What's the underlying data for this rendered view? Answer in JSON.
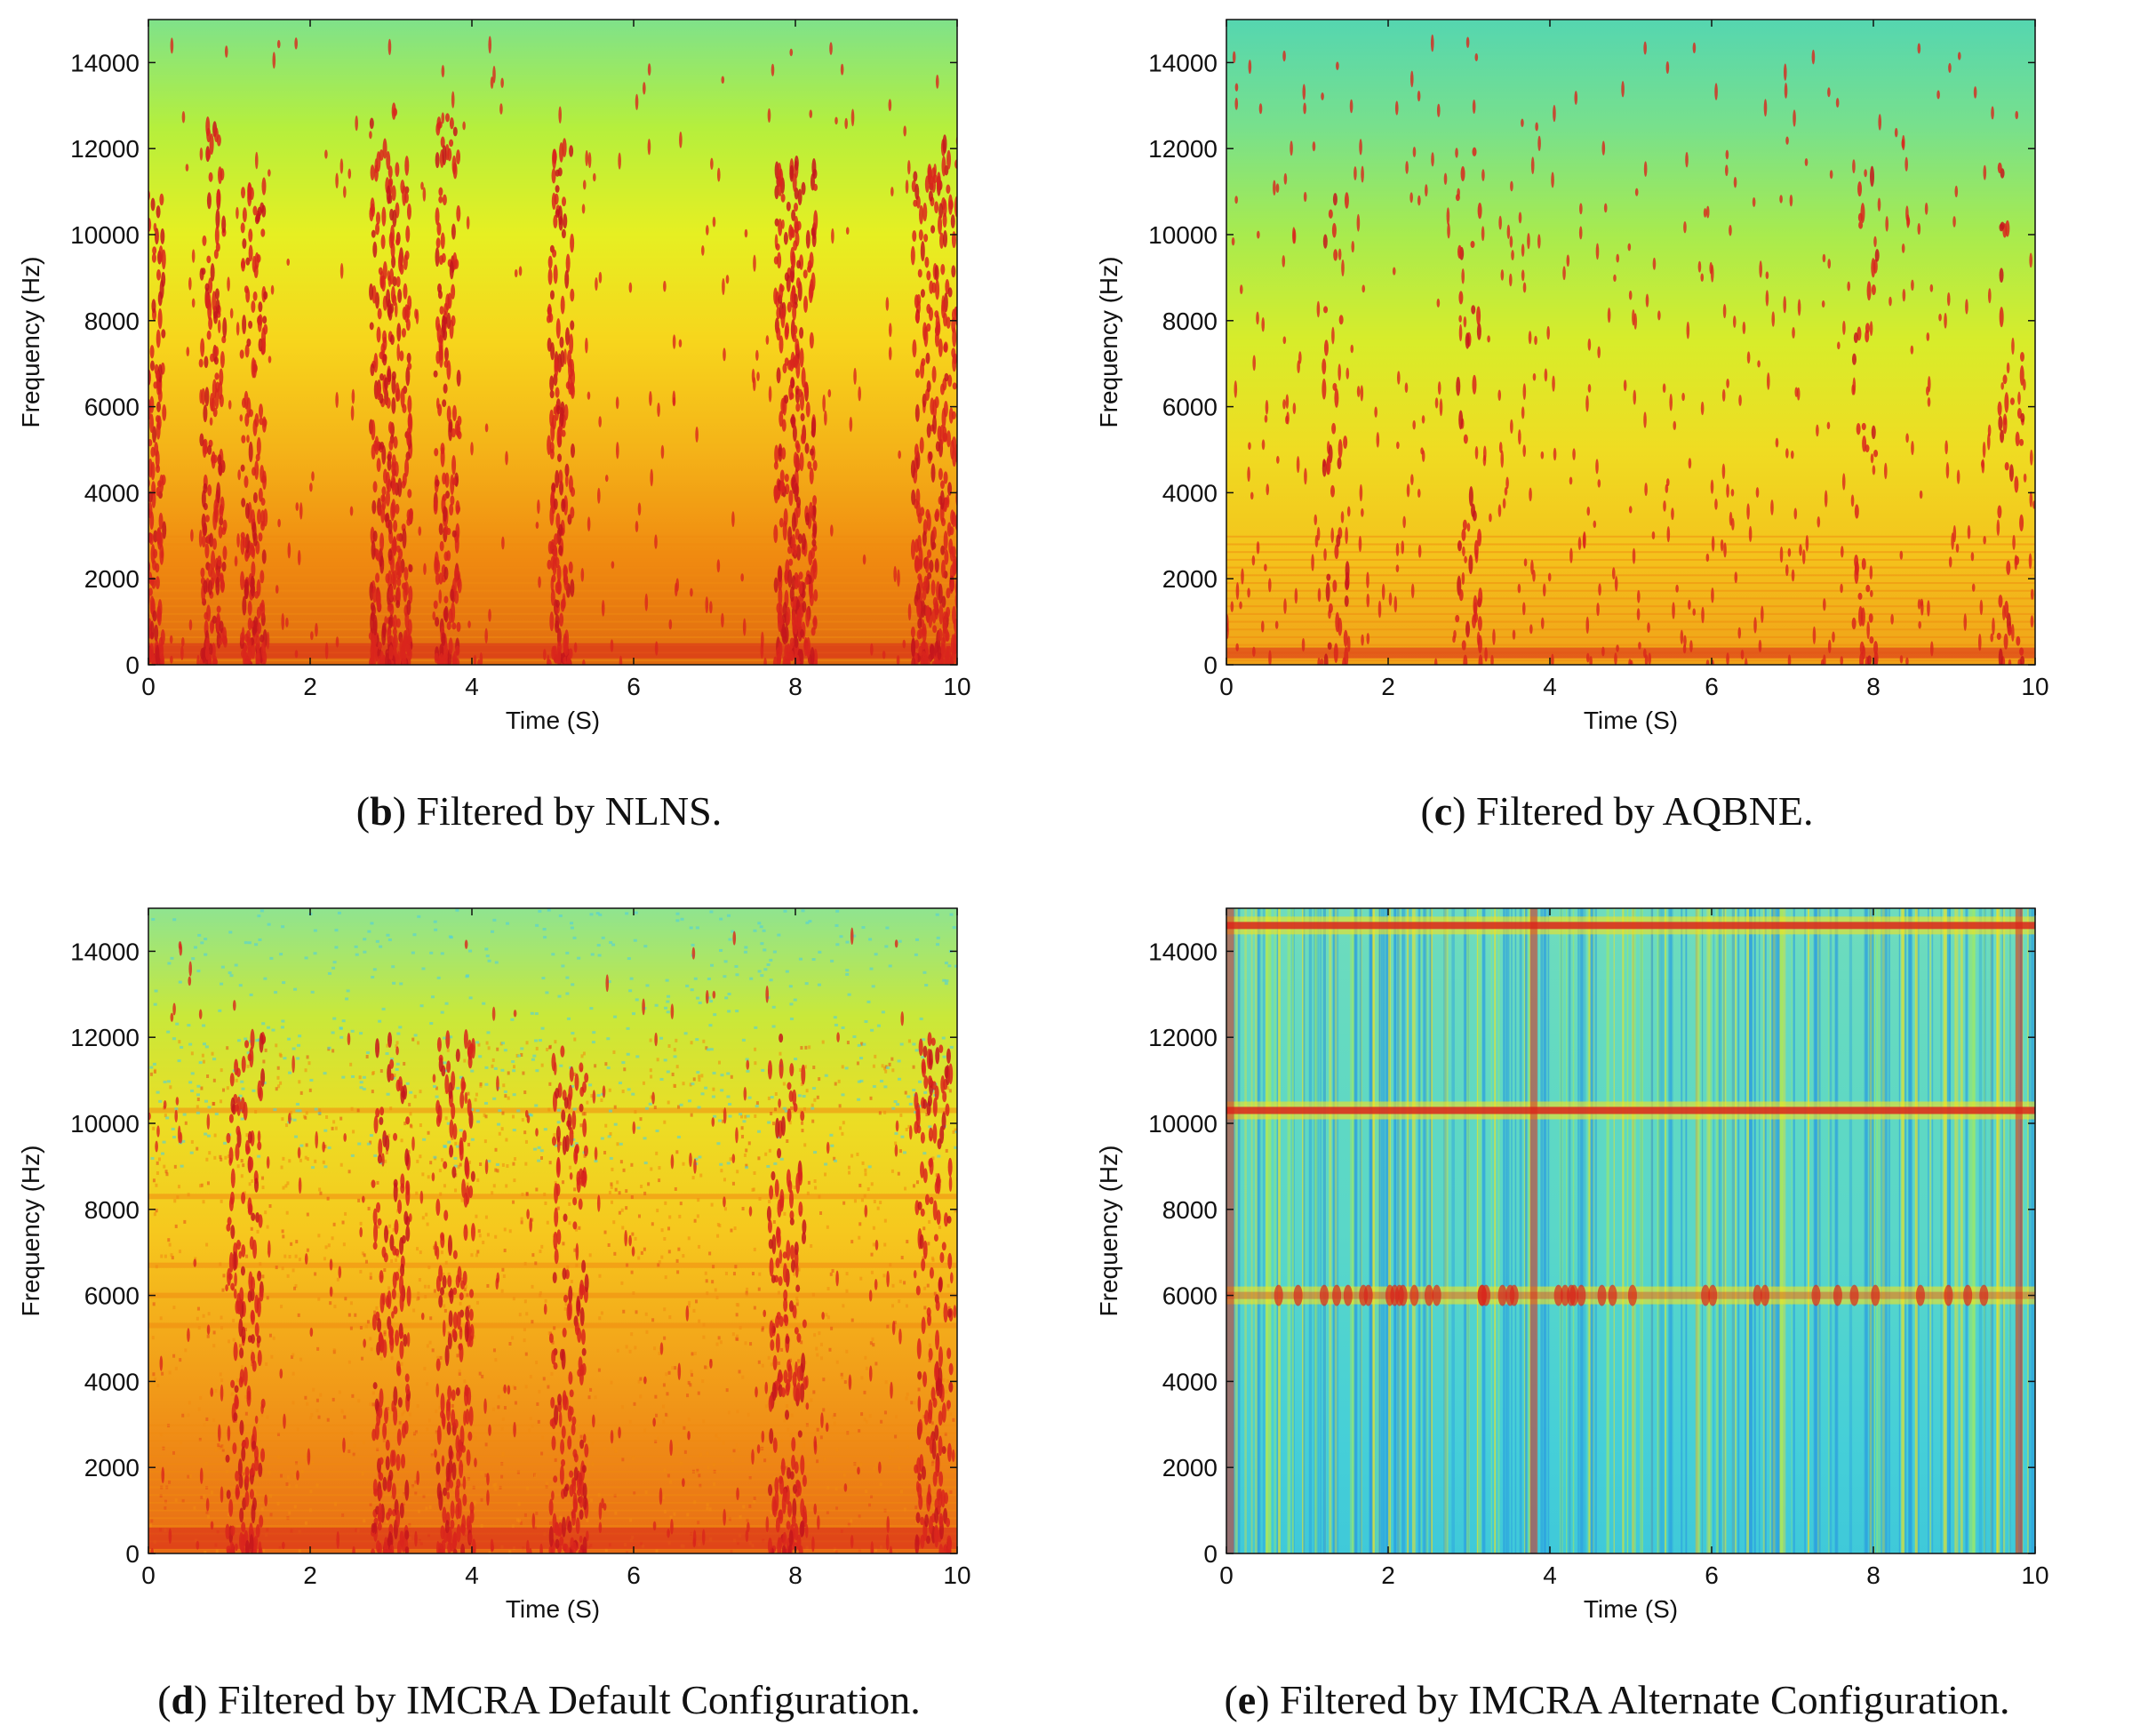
{
  "chart_data": [
    {
      "type": "heatmap",
      "subplot_letter": "b",
      "caption": "Filtered by NLNS.",
      "xlabel": "Time (S)",
      "ylabel": "Frequency (Hz)",
      "xlim": [
        0,
        10
      ],
      "ylim": [
        0,
        15000
      ],
      "xticks": [
        0,
        2,
        4,
        6,
        8,
        10
      ],
      "yticks": [
        0,
        2000,
        4000,
        6000,
        8000,
        10000,
        12000,
        14000
      ],
      "colormap": "jet",
      "background_gradient": [
        "#e06a10",
        "#f08a10",
        "#f4b318",
        "#f7d51c",
        "#e6ef22",
        "#b5ef3d",
        "#7fe28a"
      ],
      "energy_bursts_s": [
        0.05,
        0.8,
        1.3,
        2.9,
        3.1,
        3.7,
        5.1,
        7.9,
        8.1,
        9.6,
        9.9
      ],
      "low_band_hz": [
        150,
        500
      ]
    },
    {
      "type": "heatmap",
      "subplot_letter": "c",
      "caption": "Filtered by AQBNE.",
      "xlabel": "Time (S)",
      "ylabel": "Frequency (Hz)",
      "xlim": [
        0,
        10
      ],
      "ylim": [
        0,
        15000
      ],
      "xticks": [
        0,
        2,
        4,
        6,
        8,
        10
      ],
      "yticks": [
        0,
        2000,
        4000,
        6000,
        8000,
        10000,
        12000,
        14000
      ],
      "colormap": "jet",
      "background_gradient": [
        "#f0a018",
        "#f4c21c",
        "#efdc22",
        "#d8ec2a",
        "#a8eb4e",
        "#78e08c",
        "#55d6b0"
      ],
      "energy_bursts_s": [
        1.35,
        3.0,
        7.9,
        9.7
      ],
      "low_band_hz": [
        150,
        400
      ]
    },
    {
      "type": "heatmap",
      "subplot_letter": "d",
      "caption": "Filtered by IMCRA Default Configuration.",
      "xlabel": "Time (S)",
      "ylabel": "Frequency (Hz)",
      "xlim": [
        0,
        10
      ],
      "ylim": [
        0,
        15000
      ],
      "xticks": [
        0,
        2,
        4,
        6,
        8,
        10
      ],
      "yticks": [
        0,
        2000,
        4000,
        6000,
        8000,
        10000,
        12000,
        14000
      ],
      "colormap": "jet",
      "background_gradient": [
        "#e86a14",
        "#ef8a16",
        "#f3a81a",
        "#f6c81e",
        "#ecdd24",
        "#c9e83a",
        "#8fe490"
      ],
      "energy_bursts_s": [
        1.2,
        3.0,
        3.8,
        5.2,
        7.9,
        9.7
      ],
      "harmonic_bands_hz": [
        5300,
        6000,
        6700,
        8300,
        10300
      ],
      "low_band_hz": [
        100,
        600
      ]
    },
    {
      "type": "heatmap",
      "subplot_letter": "e",
      "caption": "Filtered by IMCRA Alternate Configuration.",
      "xlabel": "Time (S)",
      "ylabel": "Frequency (Hz)",
      "xlim": [
        0,
        10
      ],
      "ylim": [
        0,
        15000
      ],
      "xticks": [
        0,
        2,
        4,
        6,
        8,
        10
      ],
      "yticks": [
        0,
        2000,
        4000,
        6000,
        8000,
        10000,
        12000,
        14000
      ],
      "colormap": "jet",
      "background_gradient": [
        "#3fc9d9",
        "#45cfd8",
        "#4fd3d0",
        "#5ad7c8",
        "#5ed8c4",
        "#66dac0",
        "#6edcbd"
      ],
      "tonal_lines_hz": [
        14600,
        10300,
        6000
      ],
      "energy_bursts_s": [
        0.05,
        3.8,
        9.8
      ]
    }
  ],
  "colors": {
    "red": "#d9261c",
    "orange": "#f08a10",
    "yellow": "#f4e21e",
    "cyan": "#4fd0dc",
    "blue": "#2a9ce0"
  }
}
